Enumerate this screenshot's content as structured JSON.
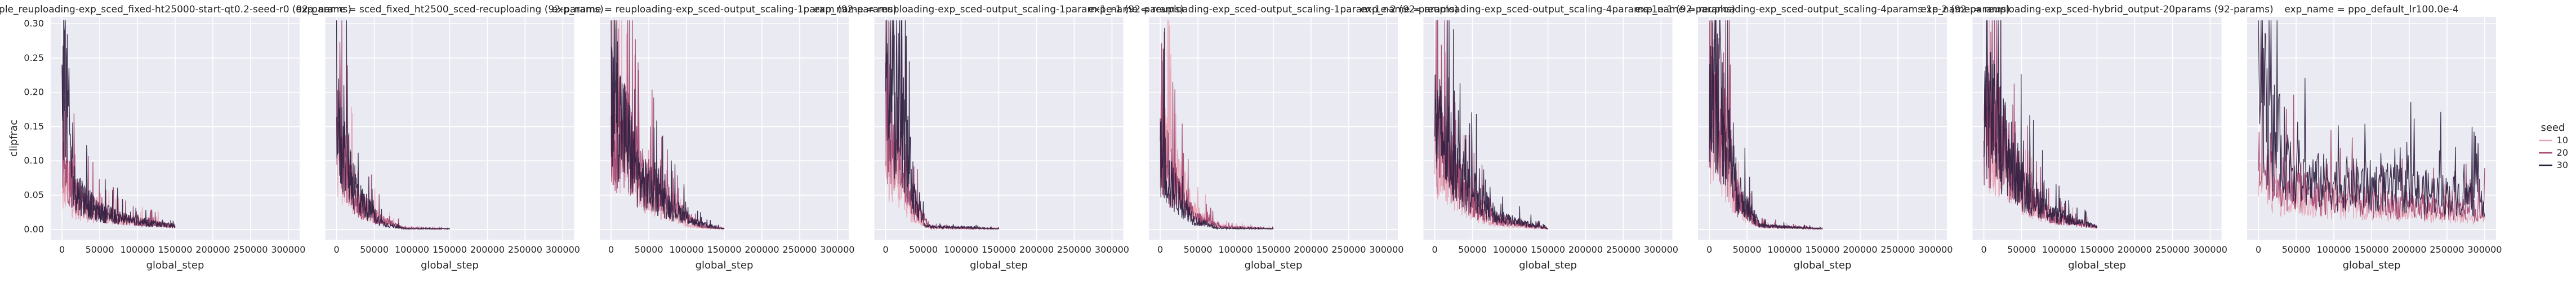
{
  "chart_data": {
    "type": "line",
    "ylabel": "clipfrac",
    "xlabel": "global_step",
    "ylim": [
      -0.015,
      0.31
    ],
    "xlim": [
      -15000,
      315000
    ],
    "y_ticks": [
      "0.00",
      "0.05",
      "0.10",
      "0.15",
      "0.20",
      "0.25",
      "0.30"
    ],
    "x_ticks": [
      "0",
      "50000",
      "100000",
      "150000",
      "200000",
      "250000",
      "300000"
    ],
    "grid": true,
    "legend": {
      "title": "seed",
      "placement": "right",
      "entries": [
        {
          "label": "10",
          "color": "#e8a4b4"
        },
        {
          "label": "20",
          "color": "#a0436d"
        },
        {
          "label": "30",
          "color": "#2d1e3e"
        }
      ]
    },
    "panels": [
      {
        "title": "ple_reuploading-exp_sced_fixed-ht25000-start-qt0.2-seed-r0 (92-params)",
        "x_end": 150000,
        "series": [
          {
            "seed": "10",
            "profile": [
              [
                0,
                0.05
              ],
              [
                0.04,
                0.08
              ],
              [
                0.1,
                0.04
              ],
              [
                0.3,
                0.022
              ],
              [
                0.6,
                0.014
              ],
              [
                1,
                0.006
              ]
            ]
          },
          {
            "seed": "20",
            "profile": [
              [
                0,
                0.1
              ],
              [
                0.05,
                0.1
              ],
              [
                0.15,
                0.05
              ],
              [
                0.35,
                0.025
              ],
              [
                0.7,
                0.012
              ],
              [
                1,
                0.005
              ]
            ]
          },
          {
            "seed": "30",
            "profile": [
              [
                0,
                0.29
              ],
              [
                0.03,
                0.24
              ],
              [
                0.1,
                0.07
              ],
              [
                0.3,
                0.03
              ],
              [
                0.6,
                0.015
              ],
              [
                1,
                0.005
              ]
            ]
          }
        ]
      },
      {
        "title": "exp_name = sced_fixed_ht2500_sced-recuploading (92-params)",
        "x_end": 150000,
        "series": [
          {
            "seed": "10",
            "profile": [
              [
                0,
                0.12
              ],
              [
                0.05,
                0.1
              ],
              [
                0.2,
                0.04
              ],
              [
                0.4,
                0.015
              ],
              [
                0.55,
                0.002
              ],
              [
                1,
                0.001
              ]
            ]
          },
          {
            "seed": "20",
            "profile": [
              [
                0,
                0.15
              ],
              [
                0.04,
                0.16
              ],
              [
                0.15,
                0.05
              ],
              [
                0.4,
                0.015
              ],
              [
                0.6,
                0.002
              ],
              [
                1,
                0.001
              ]
            ]
          },
          {
            "seed": "30",
            "profile": [
              [
                0,
                0.17
              ],
              [
                0.04,
                0.14
              ],
              [
                0.2,
                0.05
              ],
              [
                0.4,
                0.01
              ],
              [
                0.6,
                0.001
              ],
              [
                1,
                0.001
              ]
            ]
          }
        ]
      },
      {
        "title": "exp_name = reuploading-exp_sced-output_scaling-1param (92-params)",
        "x_end": 150000,
        "series": [
          {
            "seed": "10",
            "profile": [
              [
                0,
                0.18
              ],
              [
                0.1,
                0.14
              ],
              [
                0.3,
                0.06
              ],
              [
                0.5,
                0.03
              ],
              [
                0.7,
                0.005
              ],
              [
                1,
                0.001
              ]
            ]
          },
          {
            "seed": "20",
            "profile": [
              [
                0,
                0.14
              ],
              [
                0.1,
                0.16
              ],
              [
                0.3,
                0.08
              ],
              [
                0.6,
                0.03
              ],
              [
                0.8,
                0.005
              ],
              [
                1,
                0.001
              ]
            ]
          },
          {
            "seed": "30",
            "profile": [
              [
                0,
                0.27
              ],
              [
                0.08,
                0.18
              ],
              [
                0.25,
                0.08
              ],
              [
                0.5,
                0.04
              ],
              [
                0.75,
                0.01
              ],
              [
                1,
                0.001
              ]
            ]
          }
        ]
      },
      {
        "title": "exp_name = reuploading-exp_sced-output_scaling-1param-1e-1 (92-params)",
        "x_end": 150000,
        "series": [
          {
            "seed": "10",
            "profile": [
              [
                0,
                0.12
              ],
              [
                0.1,
                0.08
              ],
              [
                0.25,
                0.02
              ],
              [
                0.4,
                0.002
              ],
              [
                1,
                0.001
              ]
            ]
          },
          {
            "seed": "20",
            "profile": [
              [
                0,
                0.18
              ],
              [
                0.1,
                0.14
              ],
              [
                0.25,
                0.04
              ],
              [
                0.4,
                0.003
              ],
              [
                1,
                0.001
              ]
            ]
          },
          {
            "seed": "30",
            "profile": [
              [
                0,
                0.23
              ],
              [
                0.12,
                0.2
              ],
              [
                0.25,
                0.06
              ],
              [
                0.35,
                0.005
              ],
              [
                1,
                0.001
              ]
            ]
          }
        ]
      },
      {
        "title": "exp_name = reuploading-exp_sced-output_scaling-1param-1e-2 (92-params)",
        "x_end": 150000,
        "series": [
          {
            "seed": "10",
            "profile": [
              [
                0,
                0.17
              ],
              [
                0.1,
                0.1
              ],
              [
                0.3,
                0.03
              ],
              [
                0.5,
                0.005
              ],
              [
                1,
                0.001
              ]
            ]
          },
          {
            "seed": "20",
            "profile": [
              [
                0,
                0.15
              ],
              [
                0.1,
                0.08
              ],
              [
                0.3,
                0.02
              ],
              [
                0.55,
                0.004
              ],
              [
                1,
                0.001
              ]
            ]
          },
          {
            "seed": "30",
            "profile": [
              [
                0,
                0.12
              ],
              [
                0.1,
                0.07
              ],
              [
                0.3,
                0.015
              ],
              [
                0.5,
                0.002
              ],
              [
                1,
                0.001
              ]
            ]
          }
        ]
      },
      {
        "title": "exp_name = reuploading-exp_sced-output_scaling-4params-1e-1 (92-params)",
        "x_end": 150000,
        "series": [
          {
            "seed": "10",
            "profile": [
              [
                0,
                0.12
              ],
              [
                0.1,
                0.1
              ],
              [
                0.3,
                0.04
              ],
              [
                0.5,
                0.01
              ],
              [
                1,
                0.001
              ]
            ]
          },
          {
            "seed": "20",
            "profile": [
              [
                0,
                0.15
              ],
              [
                0.1,
                0.12
              ],
              [
                0.3,
                0.05
              ],
              [
                0.55,
                0.015
              ],
              [
                1,
                0.001
              ]
            ]
          },
          {
            "seed": "30",
            "profile": [
              [
                0,
                0.17
              ],
              [
                0.1,
                0.14
              ],
              [
                0.3,
                0.07
              ],
              [
                0.55,
                0.02
              ],
              [
                1,
                0.001
              ]
            ]
          }
        ]
      },
      {
        "title": "exp_name = reuploading-exp_sced-output_scaling-4params-1e-2 (92-params)",
        "x_end": 150000,
        "series": [
          {
            "seed": "10",
            "profile": [
              [
                0,
                0.18
              ],
              [
                0.1,
                0.14
              ],
              [
                0.25,
                0.04
              ],
              [
                0.45,
                0.005
              ],
              [
                1,
                0.001
              ]
            ]
          },
          {
            "seed": "20",
            "profile": [
              [
                0,
                0.22
              ],
              [
                0.1,
                0.18
              ],
              [
                0.25,
                0.05
              ],
              [
                0.45,
                0.006
              ],
              [
                1,
                0.001
              ]
            ]
          },
          {
            "seed": "30",
            "profile": [
              [
                0,
                0.26
              ],
              [
                0.08,
                0.22
              ],
              [
                0.25,
                0.06
              ],
              [
                0.45,
                0.006
              ],
              [
                1,
                0.001
              ]
            ]
          }
        ]
      },
      {
        "title": "exp_name = reuploading-exp_sced-hybrid_output-20params (92-params)",
        "x_end": 150000,
        "series": [
          {
            "seed": "10",
            "profile": [
              [
                0,
                0.16
              ],
              [
                0.15,
                0.12
              ],
              [
                0.35,
                0.05
              ],
              [
                0.6,
                0.02
              ],
              [
                1,
                0.004
              ]
            ]
          },
          {
            "seed": "20",
            "profile": [
              [
                0,
                0.18
              ],
              [
                0.15,
                0.14
              ],
              [
                0.35,
                0.06
              ],
              [
                0.6,
                0.02
              ],
              [
                1,
                0.004
              ]
            ]
          },
          {
            "seed": "30",
            "profile": [
              [
                0,
                0.21
              ],
              [
                0.12,
                0.16
              ],
              [
                0.35,
                0.07
              ],
              [
                0.6,
                0.025
              ],
              [
                1,
                0.004
              ]
            ]
          }
        ]
      },
      {
        "title": "exp_name = ppo_default_lr100.0e-4",
        "x_end": 300000,
        "series": [
          {
            "seed": "10",
            "profile": [
              [
                0,
                0.08
              ],
              [
                0.1,
                0.05
              ],
              [
                0.3,
                0.04
              ],
              [
                0.6,
                0.03
              ],
              [
                1,
                0.02
              ]
            ]
          },
          {
            "seed": "20",
            "profile": [
              [
                0,
                0.12
              ],
              [
                0.1,
                0.08
              ],
              [
                0.3,
                0.05
              ],
              [
                0.6,
                0.04
              ],
              [
                1,
                0.03
              ]
            ]
          },
          {
            "seed": "30",
            "profile": [
              [
                0,
                0.28
              ],
              [
                0.05,
                0.16
              ],
              [
                0.2,
                0.08
              ],
              [
                0.5,
                0.07
              ],
              [
                1,
                0.05
              ]
            ]
          }
        ]
      }
    ]
  }
}
